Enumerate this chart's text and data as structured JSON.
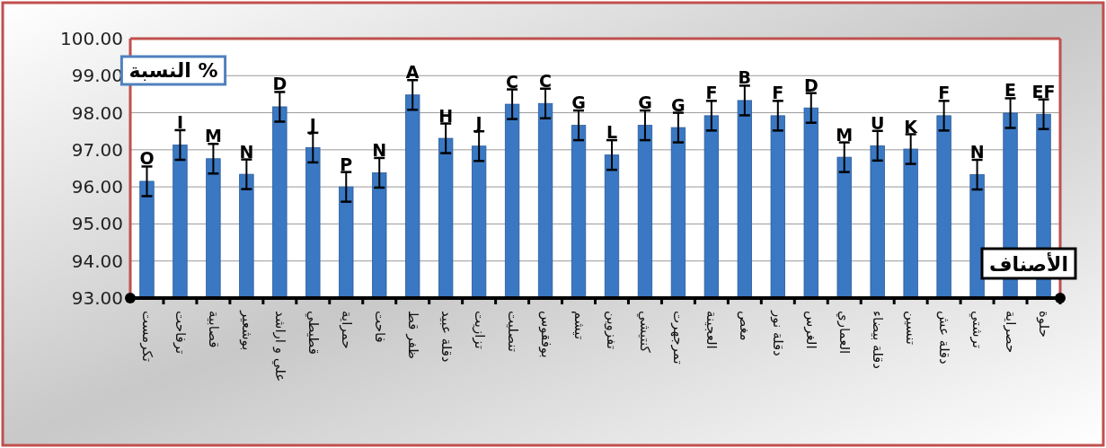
{
  "chart_data": {
    "type": "bar",
    "ylabel": "النسبة %",
    "xlabel": "الأصناف",
    "categories": [
      "تكرمست",
      "ترفاحت",
      "قصابية",
      "بوشعير",
      "علي و اراشد",
      "قطيطي",
      "حمراية",
      "فاحت",
      "ظفر قط",
      "دقلة عبيد",
      "تزازيت",
      "تنصليت",
      "بوفقوس",
      "تيشم",
      "تفزوين",
      "كنتيشي",
      "تمرجهرت",
      "العجينة",
      "مغص",
      "دقلة نور",
      "الغرس",
      "العماري",
      "دقلة بيضاء",
      "تنسين",
      "دقلة عش",
      "ترشتي",
      "حصراية",
      "حلوة"
    ],
    "values": [
      96.15,
      97.13,
      96.76,
      96.34,
      98.16,
      97.06,
      96.0,
      96.38,
      98.48,
      97.31,
      97.1,
      98.23,
      98.25,
      97.66,
      96.86,
      97.66,
      97.6,
      97.92,
      98.33,
      97.92,
      98.13,
      96.8,
      97.11,
      97.02,
      97.92,
      96.33,
      97.99,
      97.96
    ],
    "errors": [
      0.4,
      0.4,
      0.4,
      0.4,
      0.4,
      0.4,
      0.4,
      0.4,
      0.4,
      0.4,
      0.4,
      0.4,
      0.4,
      0.4,
      0.4,
      0.4,
      0.4,
      0.4,
      0.4,
      0.4,
      0.4,
      0.4,
      0.4,
      0.4,
      0.4,
      0.4,
      0.4,
      0.4
    ],
    "value_labels": [
      "O",
      "I",
      "M",
      "N",
      "D",
      "J",
      "P",
      "N",
      "A",
      "H",
      "J",
      "C",
      "C",
      "G",
      "L",
      "G",
      "G",
      "F",
      "B",
      "F",
      "D",
      "M",
      "U",
      "K",
      "F",
      "N",
      "E",
      "EF"
    ],
    "color": "#3a78c3",
    "ylim": [
      93,
      100
    ],
    "yticks": [
      {
        "value": 93,
        "label": "93.00"
      },
      {
        "value": 94,
        "label": "94.00"
      },
      {
        "value": 95,
        "label": "95.00"
      },
      {
        "value": 96,
        "label": "96.00"
      },
      {
        "value": 97,
        "label": "97.00"
      },
      {
        "value": 98,
        "label": "98.00"
      },
      {
        "value": 99,
        "label": "99.00"
      },
      {
        "value": 100,
        "label": "100.00"
      }
    ],
    "grid": "y"
  }
}
